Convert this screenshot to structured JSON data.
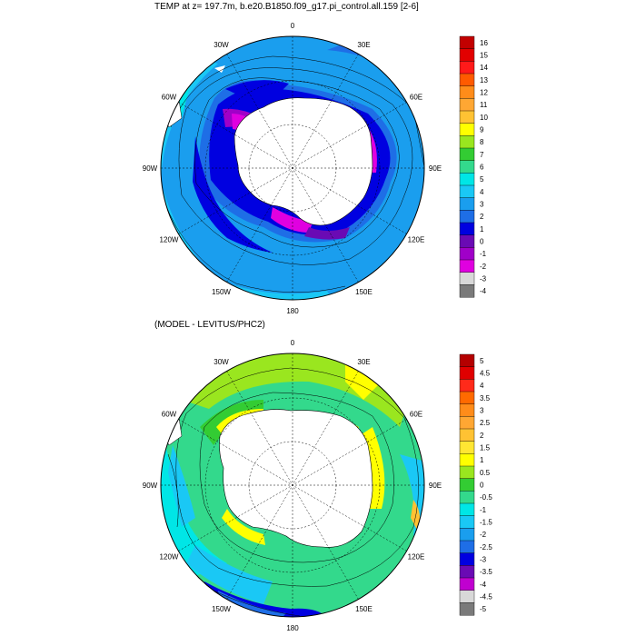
{
  "maps": [
    {
      "title": "TEMP at z= 197.7m, b.e20.B1850.f09_g17.pi_control.all.159 [2-6]",
      "lon_labels": [
        "0",
        "30E",
        "60E",
        "90E",
        "120E",
        "150E",
        "180",
        "150W",
        "120W",
        "90W",
        "60W",
        "30W"
      ],
      "colorbar": {
        "labels": [
          "16",
          "15",
          "14",
          "13",
          "12",
          "11",
          "10",
          "9",
          "8",
          "7",
          "6",
          "5",
          "4",
          "3",
          "2",
          "1",
          "0",
          "-1",
          "-2",
          "-3",
          "-4"
        ],
        "colors": [
          "#c20000",
          "#e20000",
          "#ff1a1a",
          "#ff5a00",
          "#ff8c1a",
          "#ffa733",
          "#ffc233",
          "#ffff00",
          "#9ae61f",
          "#33cc33",
          "#33d98c",
          "#00e6e6",
          "#1ac8f5",
          "#1a9eee",
          "#1e6ee6",
          "#0000e0",
          "#6a0ab4",
          "#a000c8",
          "#e000e0",
          "#d8d8d8",
          "#7a7a7a"
        ]
      }
    },
    {
      "title": "(MODEL - LEVITUS/PHC2)",
      "lon_labels": [
        "0",
        "30E",
        "60E",
        "90E",
        "120E",
        "150E",
        "180",
        "150W",
        "120W",
        "90W",
        "60W",
        "30W"
      ],
      "colorbar": {
        "labels": [
          "5",
          "4.5",
          "4",
          "3.5",
          "3",
          "2.5",
          "2",
          "1.5",
          "1",
          "0.5",
          "0",
          "-0.5",
          "-1",
          "-1.5",
          "-2",
          "-2.5",
          "-3",
          "-3.5",
          "-4",
          "-4.5",
          "-5"
        ],
        "colors": [
          "#b40000",
          "#e00000",
          "#ff2a1a",
          "#ff6a00",
          "#ff8c1a",
          "#ffa733",
          "#ffc233",
          "#ffe633",
          "#ffff00",
          "#9ae61f",
          "#33cc33",
          "#33d98c",
          "#00e6e6",
          "#1ac8f5",
          "#1a9eee",
          "#1e6ee6",
          "#0000e0",
          "#6a0ab4",
          "#c000d0",
          "#d8d8d8",
          "#7a7a7a"
        ]
      }
    }
  ]
}
